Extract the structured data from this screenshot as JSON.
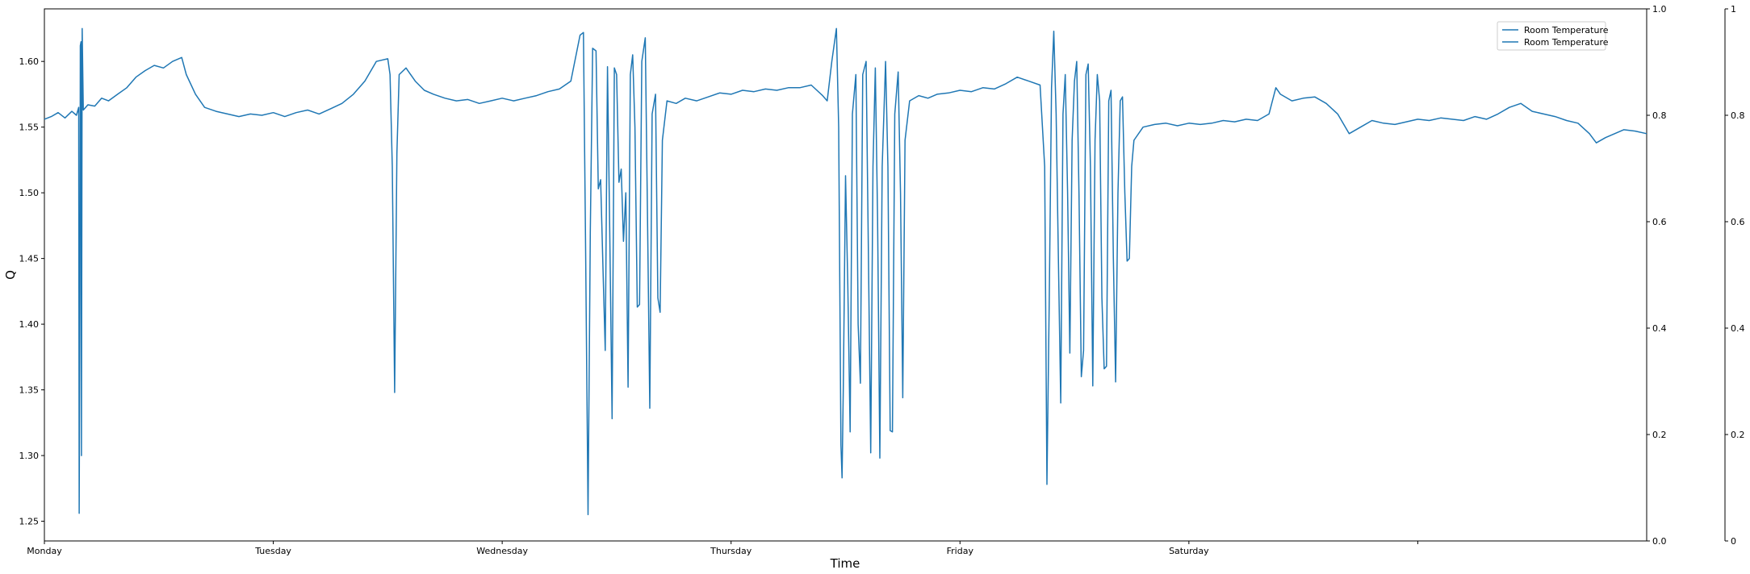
{
  "chart_data": {
    "type": "line",
    "xlabel": "Time",
    "ylabel": "Q",
    "xlim": [
      0,
      7
    ],
    "ylim": [
      1.235,
      1.64
    ],
    "x_ticks": [
      {
        "x": 0,
        "label": "Monday"
      },
      {
        "x": 1,
        "label": "Tuesday"
      },
      {
        "x": 2,
        "label": "Wednesday"
      },
      {
        "x": 3,
        "label": "Thursday"
      },
      {
        "x": 4,
        "label": "Friday"
      },
      {
        "x": 5,
        "label": "Saturday"
      },
      {
        "x": 6,
        "label": ""
      }
    ],
    "y_ticks": [
      "1.25",
      "1.30",
      "1.35",
      "1.40",
      "1.45",
      "1.50",
      "1.55",
      "1.60"
    ],
    "right_axis_1": {
      "ylim": [
        0,
        1
      ],
      "ticks": [
        "0.0",
        "0.2",
        "0.4",
        "0.6",
        "0.8",
        "1.0"
      ]
    },
    "right_axis_2": {
      "ylim": [
        0,
        1
      ],
      "ticks": [
        "0",
        "0.2",
        "0.4",
        "0.6",
        "0.8",
        "1"
      ]
    },
    "legend": {
      "position": "top-right",
      "entries": [
        "Room Temperature",
        "Room Temperature"
      ]
    },
    "grid": false,
    "series": [
      {
        "name": "Room Temperature",
        "color": "#1f77b4",
        "points": [
          [
            0.0,
            1.556
          ],
          [
            0.03,
            1.558
          ],
          [
            0.06,
            1.561
          ],
          [
            0.09,
            1.557
          ],
          [
            0.12,
            1.562
          ],
          [
            0.14,
            1.559
          ],
          [
            0.15,
            1.565
          ],
          [
            0.152,
            1.256
          ],
          [
            0.155,
            1.42
          ],
          [
            0.157,
            1.612
          ],
          [
            0.16,
            1.615
          ],
          [
            0.162,
            1.3
          ],
          [
            0.165,
            1.625
          ],
          [
            0.17,
            1.563
          ],
          [
            0.19,
            1.567
          ],
          [
            0.22,
            1.566
          ],
          [
            0.25,
            1.572
          ],
          [
            0.28,
            1.57
          ],
          [
            0.32,
            1.575
          ],
          [
            0.36,
            1.58
          ],
          [
            0.4,
            1.588
          ],
          [
            0.44,
            1.593
          ],
          [
            0.48,
            1.597
          ],
          [
            0.52,
            1.595
          ],
          [
            0.56,
            1.6
          ],
          [
            0.6,
            1.603
          ],
          [
            0.62,
            1.59
          ],
          [
            0.66,
            1.575
          ],
          [
            0.7,
            1.565
          ],
          [
            0.75,
            1.562
          ],
          [
            0.8,
            1.56
          ],
          [
            0.85,
            1.558
          ],
          [
            0.9,
            1.56
          ],
          [
            0.95,
            1.559
          ],
          [
            1.0,
            1.561
          ],
          [
            1.05,
            1.558
          ],
          [
            1.1,
            1.561
          ],
          [
            1.15,
            1.563
          ],
          [
            1.2,
            1.56
          ],
          [
            1.25,
            1.564
          ],
          [
            1.3,
            1.568
          ],
          [
            1.35,
            1.575
          ],
          [
            1.4,
            1.585
          ],
          [
            1.45,
            1.6
          ],
          [
            1.5,
            1.602
          ],
          [
            1.51,
            1.59
          ],
          [
            1.52,
            1.52
          ],
          [
            1.53,
            1.348
          ],
          [
            1.54,
            1.53
          ],
          [
            1.55,
            1.59
          ],
          [
            1.58,
            1.595
          ],
          [
            1.62,
            1.585
          ],
          [
            1.66,
            1.578
          ],
          [
            1.7,
            1.575
          ],
          [
            1.75,
            1.572
          ],
          [
            1.8,
            1.57
          ],
          [
            1.85,
            1.571
          ],
          [
            1.9,
            1.568
          ],
          [
            1.95,
            1.57
          ],
          [
            2.0,
            1.572
          ],
          [
            2.05,
            1.57
          ],
          [
            2.1,
            1.572
          ],
          [
            2.15,
            1.574
          ],
          [
            2.2,
            1.577
          ],
          [
            2.25,
            1.579
          ],
          [
            2.3,
            1.585
          ],
          [
            2.34,
            1.62
          ],
          [
            2.355,
            1.622
          ],
          [
            2.365,
            1.45
          ],
          [
            2.375,
            1.255
          ],
          [
            2.385,
            1.47
          ],
          [
            2.395,
            1.61
          ],
          [
            2.41,
            1.608
          ],
          [
            2.42,
            1.503
          ],
          [
            2.43,
            1.51
          ],
          [
            2.44,
            1.445
          ],
          [
            2.45,
            1.38
          ],
          [
            2.46,
            1.596
          ],
          [
            2.47,
            1.47
          ],
          [
            2.48,
            1.328
          ],
          [
            2.49,
            1.595
          ],
          [
            2.5,
            1.59
          ],
          [
            2.51,
            1.508
          ],
          [
            2.52,
            1.518
          ],
          [
            2.53,
            1.463
          ],
          [
            2.54,
            1.5
          ],
          [
            2.55,
            1.352
          ],
          [
            2.56,
            1.59
          ],
          [
            2.57,
            1.605
          ],
          [
            2.58,
            1.55
          ],
          [
            2.59,
            1.413
          ],
          [
            2.6,
            1.415
          ],
          [
            2.61,
            1.6
          ],
          [
            2.625,
            1.618
          ],
          [
            2.635,
            1.48
          ],
          [
            2.645,
            1.336
          ],
          [
            2.655,
            1.56
          ],
          [
            2.67,
            1.575
          ],
          [
            2.68,
            1.42
          ],
          [
            2.69,
            1.409
          ],
          [
            2.7,
            1.54
          ],
          [
            2.72,
            1.57
          ],
          [
            2.76,
            1.568
          ],
          [
            2.8,
            1.572
          ],
          [
            2.85,
            1.57
          ],
          [
            2.9,
            1.573
          ],
          [
            2.95,
            1.576
          ],
          [
            3.0,
            1.575
          ],
          [
            3.05,
            1.578
          ],
          [
            3.1,
            1.577
          ],
          [
            3.15,
            1.579
          ],
          [
            3.2,
            1.578
          ],
          [
            3.25,
            1.58
          ],
          [
            3.3,
            1.58
          ],
          [
            3.35,
            1.582
          ],
          [
            3.4,
            1.574
          ],
          [
            3.42,
            1.57
          ],
          [
            3.44,
            1.6
          ],
          [
            3.46,
            1.625
          ],
          [
            3.47,
            1.55
          ],
          [
            3.48,
            1.308
          ],
          [
            3.485,
            1.283
          ],
          [
            3.49,
            1.35
          ],
          [
            3.5,
            1.513
          ],
          [
            3.51,
            1.43
          ],
          [
            3.52,
            1.318
          ],
          [
            3.53,
            1.56
          ],
          [
            3.545,
            1.59
          ],
          [
            3.555,
            1.4
          ],
          [
            3.565,
            1.355
          ],
          [
            3.575,
            1.59
          ],
          [
            3.59,
            1.6
          ],
          [
            3.6,
            1.45
          ],
          [
            3.61,
            1.302
          ],
          [
            3.62,
            1.52
          ],
          [
            3.63,
            1.595
          ],
          [
            3.64,
            1.48
          ],
          [
            3.65,
            1.298
          ],
          [
            3.66,
            1.52
          ],
          [
            3.675,
            1.6
          ],
          [
            3.685,
            1.52
          ],
          [
            3.695,
            1.319
          ],
          [
            3.705,
            1.318
          ],
          [
            3.715,
            1.56
          ],
          [
            3.73,
            1.592
          ],
          [
            3.74,
            1.5
          ],
          [
            3.75,
            1.344
          ],
          [
            3.76,
            1.54
          ],
          [
            3.78,
            1.57
          ],
          [
            3.82,
            1.574
          ],
          [
            3.86,
            1.572
          ],
          [
            3.9,
            1.575
          ],
          [
            3.95,
            1.576
          ],
          [
            4.0,
            1.578
          ],
          [
            4.05,
            1.577
          ],
          [
            4.1,
            1.58
          ],
          [
            4.15,
            1.579
          ],
          [
            4.2,
            1.583
          ],
          [
            4.25,
            1.588
          ],
          [
            4.3,
            1.585
          ],
          [
            4.35,
            1.582
          ],
          [
            4.37,
            1.52
          ],
          [
            4.38,
            1.278
          ],
          [
            4.39,
            1.42
          ],
          [
            4.4,
            1.58
          ],
          [
            4.41,
            1.623
          ],
          [
            4.42,
            1.56
          ],
          [
            4.43,
            1.45
          ],
          [
            4.44,
            1.34
          ],
          [
            4.45,
            1.56
          ],
          [
            4.46,
            1.59
          ],
          [
            4.47,
            1.5
          ],
          [
            4.48,
            1.378
          ],
          [
            4.49,
            1.54
          ],
          [
            4.5,
            1.585
          ],
          [
            4.51,
            1.6
          ],
          [
            4.52,
            1.5
          ],
          [
            4.53,
            1.36
          ],
          [
            4.54,
            1.38
          ],
          [
            4.55,
            1.59
          ],
          [
            4.56,
            1.598
          ],
          [
            4.57,
            1.52
          ],
          [
            4.58,
            1.353
          ],
          [
            4.59,
            1.54
          ],
          [
            4.6,
            1.59
          ],
          [
            4.61,
            1.57
          ],
          [
            4.62,
            1.42
          ],
          [
            4.63,
            1.366
          ],
          [
            4.64,
            1.368
          ],
          [
            4.65,
            1.57
          ],
          [
            4.66,
            1.578
          ],
          [
            4.67,
            1.45
          ],
          [
            4.68,
            1.356
          ],
          [
            4.69,
            1.5
          ],
          [
            4.7,
            1.57
          ],
          [
            4.71,
            1.573
          ],
          [
            4.72,
            1.5
          ],
          [
            4.73,
            1.448
          ],
          [
            4.74,
            1.45
          ],
          [
            4.75,
            1.52
          ],
          [
            4.76,
            1.54
          ],
          [
            4.8,
            1.55
          ],
          [
            4.85,
            1.552
          ],
          [
            4.9,
            1.553
          ],
          [
            4.95,
            1.551
          ],
          [
            5.0,
            1.553
          ],
          [
            5.05,
            1.552
          ],
          [
            5.1,
            1.553
          ],
          [
            5.15,
            1.555
          ],
          [
            5.2,
            1.554
          ],
          [
            5.25,
            1.556
          ],
          [
            5.3,
            1.555
          ],
          [
            5.35,
            1.56
          ],
          [
            5.38,
            1.58
          ],
          [
            5.4,
            1.575
          ],
          [
            5.45,
            1.57
          ],
          [
            5.5,
            1.572
          ],
          [
            5.55,
            1.573
          ],
          [
            5.6,
            1.568
          ],
          [
            5.65,
            1.56
          ],
          [
            5.7,
            1.545
          ],
          [
            5.75,
            1.55
          ],
          [
            5.8,
            1.555
          ],
          [
            5.85,
            1.553
          ],
          [
            5.9,
            1.552
          ],
          [
            5.95,
            1.554
          ],
          [
            6.0,
            1.556
          ],
          [
            6.05,
            1.555
          ],
          [
            6.1,
            1.557
          ],
          [
            6.15,
            1.556
          ],
          [
            6.2,
            1.555
          ],
          [
            6.25,
            1.558
          ],
          [
            6.3,
            1.556
          ],
          [
            6.35,
            1.56
          ],
          [
            6.4,
            1.565
          ],
          [
            6.45,
            1.568
          ],
          [
            6.5,
            1.562
          ],
          [
            6.55,
            1.56
          ],
          [
            6.6,
            1.558
          ],
          [
            6.65,
            1.555
          ],
          [
            6.7,
            1.553
          ],
          [
            6.75,
            1.545
          ],
          [
            6.78,
            1.538
          ],
          [
            6.82,
            1.542
          ],
          [
            6.86,
            1.545
          ],
          [
            6.9,
            1.548
          ],
          [
            6.95,
            1.547
          ],
          [
            7.0,
            1.545
          ]
        ]
      }
    ]
  }
}
